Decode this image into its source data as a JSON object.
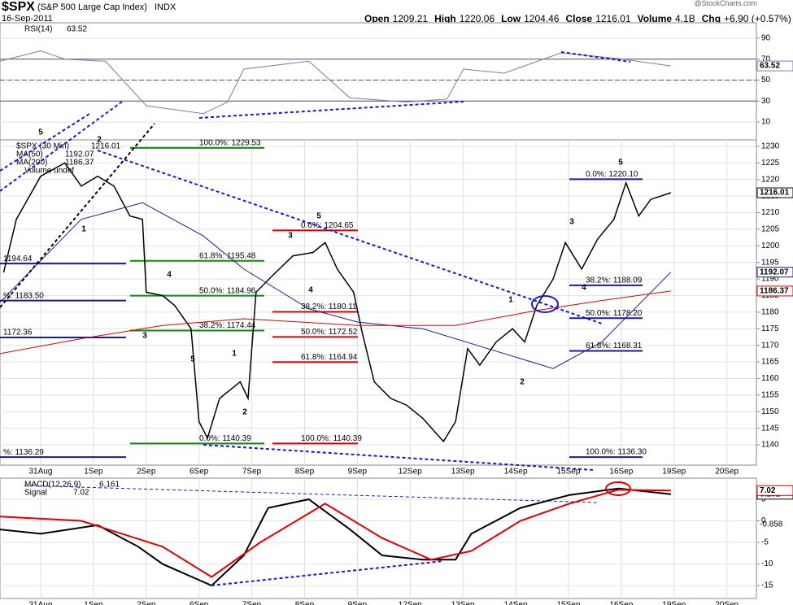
{
  "header": {
    "symbol": "$SPX",
    "name": "(S&P 500 Large Cap Index)",
    "exchange": "INDX",
    "date": "16-Sep-2011",
    "quote": [
      {
        "label": "Open",
        "value": 1209.21
      },
      {
        "label": "High",
        "value": 1220.06
      },
      {
        "label": "Low",
        "value": 1204.46
      },
      {
        "label": "Close",
        "value": 1216.01
      },
      {
        "label": "Volume",
        "value": "4.1B"
      },
      {
        "label": "Chg",
        "value": "+6.90 (+0.57%)"
      }
    ],
    "watermark": "@StockCharts.com"
  },
  "chart_data": [
    {
      "type": "line",
      "ylim": [
        -7.09,
        104.76
      ],
      "yticks": [
        10,
        30,
        50,
        70,
        90
      ],
      "xlim": [
        -0.77,
        13.56
      ],
      "reference_lines": [
        70,
        50,
        30
      ],
      "grid": true,
      "series": [
        {
          "name": "RSI(14)",
          "color": "#6f80a8",
          "last": 63.52,
          "x": [
            -0.77,
            0,
            0.46,
            1.23,
            2.0,
            3.08,
            3.54,
            3.85,
            5.08,
            5.86,
            6.93,
            7.7,
            8.01,
            8.78,
            9.86,
            10.94,
            11.94
          ],
          "values": [
            68,
            78,
            70,
            68,
            25.5,
            18,
            29,
            60.5,
            68,
            33,
            29,
            32,
            60.5,
            56.6,
            76,
            70.6,
            63.52
          ]
        }
      ]
    },
    {
      "type": "line",
      "ylim": [
        1133.87,
        1231.96
      ],
      "yticks": [
        1140,
        1145,
        1150,
        1155,
        1160,
        1165,
        1170,
        1175,
        1180,
        1185,
        1190,
        1195,
        1200,
        1205,
        1210,
        1215,
        1220,
        1225,
        1230
      ],
      "xlim": [
        -0.77,
        13.56
      ],
      "grid": true,
      "xticks": [
        {
          "value": 0,
          "label": "31Aug"
        },
        {
          "value": 1,
          "label": "1Sep"
        },
        {
          "value": 2,
          "label": "2Sep"
        },
        {
          "value": 3,
          "label": "6Sep"
        },
        {
          "value": 4,
          "label": "7Sep"
        },
        {
          "value": 5,
          "label": "8Sep"
        },
        {
          "value": 6,
          "label": "9Sep"
        },
        {
          "value": 7,
          "label": "12Sep"
        },
        {
          "value": 8,
          "label": "13Sep"
        },
        {
          "value": 9,
          "label": "14Sep"
        },
        {
          "value": 10,
          "label": "15Sep"
        },
        {
          "value": 11,
          "label": "16Sep"
        },
        {
          "value": 12,
          "label": "19Sep"
        },
        {
          "value": 13,
          "label": "20Sep"
        }
      ],
      "series": [
        {
          "name": "$SPX (30 Min)",
          "color": "#000000",
          "last": 1216.01,
          "x": [
            -0.7,
            -0.46,
            0,
            0.46,
            0.77,
            1.08,
            1.39,
            1.69,
            1.93,
            2.0,
            2.31,
            2.54,
            2.85,
            3.0,
            3.16,
            3.39,
            3.78,
            3.93,
            4.08,
            4.39,
            4.78,
            5.16,
            5.39,
            5.62,
            5.93,
            6.09,
            6.32,
            6.63,
            6.93,
            7.24,
            7.63,
            7.86,
            8.09,
            8.32,
            8.63,
            8.94,
            9.17,
            9.4,
            9.71,
            9.94,
            10.25,
            10.55,
            10.86,
            11.09,
            11.33,
            11.56,
            11.94
          ],
          "values": [
            1192,
            1208,
            1221,
            1225,
            1218,
            1221,
            1218,
            1209,
            1208,
            1186,
            1185,
            1182,
            1175,
            1147,
            1142,
            1154,
            1159,
            1154,
            1186,
            1191,
            1197,
            1198,
            1201,
            1193,
            1186,
            1174,
            1159,
            1154,
            1152,
            1148,
            1141,
            1147,
            1169,
            1164,
            1171,
            1175,
            1171,
            1182,
            1190,
            1201,
            1193,
            1202,
            1208,
            1219,
            1209,
            1214,
            1216.01
          ]
        },
        {
          "name": "MA(50)",
          "color": "#1c1c8e",
          "last": 1192.07,
          "x": [
            -0.77,
            0.77,
            1.93,
            3.08,
            3.85,
            5.08,
            6.01,
            7.24,
            8.47,
            9.71,
            10.63,
            11.94
          ],
          "values": [
            1183,
            1208,
            1213,
            1203,
            1193,
            1181,
            1177,
            1175,
            1169,
            1163,
            1171,
            1192.07
          ]
        },
        {
          "name": "MA(200)",
          "color": "#e00000",
          "last": 1186.37,
          "x": [
            -0.77,
            0.77,
            2.31,
            3.85,
            6.01,
            7.86,
            9.4,
            10.63,
            11.94
          ],
          "values": [
            1167.5,
            1172,
            1176,
            1178,
            1176,
            1176,
            1180.5,
            1183.5,
            1186.37
          ]
        }
      ],
      "volume_label": "Volume undef",
      "fib_sets": [
        {
          "color": "#118811",
          "levels": [
            {
              "label": "100.0%: 1229.53",
              "value": 1229.53
            },
            {
              "label": "61.8%: 1195.48",
              "value": 1195.48
            },
            {
              "label": "50.0%: 1184.96",
              "value": 1184.96
            },
            {
              "label": "38.2%: 1174.44",
              "value": 1174.44
            },
            {
              "label": "0.0%: 1140.39",
              "value": 1140.39
            }
          ]
        },
        {
          "color": "#dd0000",
          "levels": [
            {
              "label": "0.0%: 1204.65",
              "value": 1204.65
            },
            {
              "label": "38.2%: 1180.11",
              "value": 1180.11
            },
            {
              "label": "50.0%: 1172.52",
              "value": 1172.52
            },
            {
              "label": "61.8%: 1164.94",
              "value": 1164.94
            },
            {
              "label": "100.0%: 1140.39",
              "value": 1140.39
            }
          ]
        },
        {
          "color": "#1a1aa0",
          "levels": [
            {
              "label": "0.0%: 1220.10",
              "value": 1220.1
            },
            {
              "label": "38.2%: 1188.09",
              "value": 1188.09
            },
            {
              "label": "50.0%: 1178.20",
              "value": 1178.2
            },
            {
              "label": "61.8%: 1168.31",
              "value": 1168.31
            },
            {
              "label": "100.0%: 1136.30",
              "value": 1136.3
            }
          ]
        },
        {
          "color": "#1a1aa0",
          "levels": [
            {
              "label": "1194.64",
              "value": 1194.64
            },
            {
              "label": "%: 1183.50",
              "value": 1183.5
            },
            {
              "label": "1172.36",
              "value": 1172.36
            },
            {
              "label": "%: 1136.29",
              "value": 1136.29
            }
          ]
        }
      ],
      "wave_labels": [
        "5",
        "2",
        "1",
        "4",
        "3",
        "5",
        "1",
        "2",
        "5",
        "3",
        "4",
        "1",
        "2",
        "3",
        "4",
        "5"
      ]
    },
    {
      "type": "line",
      "ylim": [
        -18.0,
        9.9
      ],
      "yticks": [
        -15,
        -10,
        -5,
        0,
        5
      ],
      "xlim": [
        -0.77,
        13.56
      ],
      "grid": true,
      "xticks": [
        {
          "value": 0,
          "label": "31Aug"
        },
        {
          "value": 1,
          "label": "1Sep"
        },
        {
          "value": 2,
          "label": "2Sep"
        },
        {
          "value": 3,
          "label": "6Sep"
        },
        {
          "value": 4,
          "label": "7Sep"
        },
        {
          "value": 5,
          "label": "8Sep"
        },
        {
          "value": 6,
          "label": "9Sep"
        },
        {
          "value": 7,
          "label": "12Sep"
        },
        {
          "value": 8,
          "label": "13Sep"
        },
        {
          "value": 9,
          "label": "14Sep"
        },
        {
          "value": 10,
          "label": "15Sep"
        },
        {
          "value": 11,
          "label": "16Sep"
        },
        {
          "value": 12,
          "label": "19Sep"
        },
        {
          "value": 13,
          "label": "20Sep"
        }
      ],
      "series": [
        {
          "name": "MACD(12,26,9)",
          "color": "#000000",
          "last": 6.161,
          "x": [
            -0.77,
            0,
            1.08,
            1.85,
            2.31,
            3.24,
            3.85,
            4.31,
            5.08,
            5.86,
            6.47,
            7.24,
            7.86,
            8.16,
            9.09,
            10.02,
            10.94,
            11.94
          ],
          "values": [
            -2,
            -3,
            -1,
            -6,
            -10,
            -15,
            -8,
            3,
            5,
            -2,
            -8,
            -9,
            -9,
            -3,
            3,
            6,
            7.5,
            6.161
          ]
        },
        {
          "name": "Signal",
          "color": "#e00000",
          "last": 7.02,
          "x": [
            -0.77,
            0.77,
            2.31,
            3.24,
            4.16,
            5.39,
            6.47,
            7.4,
            8.16,
            9.09,
            10.02,
            10.94,
            11.94
          ],
          "values": [
            1,
            0,
            -6,
            -13,
            -5,
            4,
            -4,
            -9,
            -7,
            0,
            4,
            7.2,
            7.02
          ]
        }
      ],
      "histogram_last": -0.858
    }
  ]
}
